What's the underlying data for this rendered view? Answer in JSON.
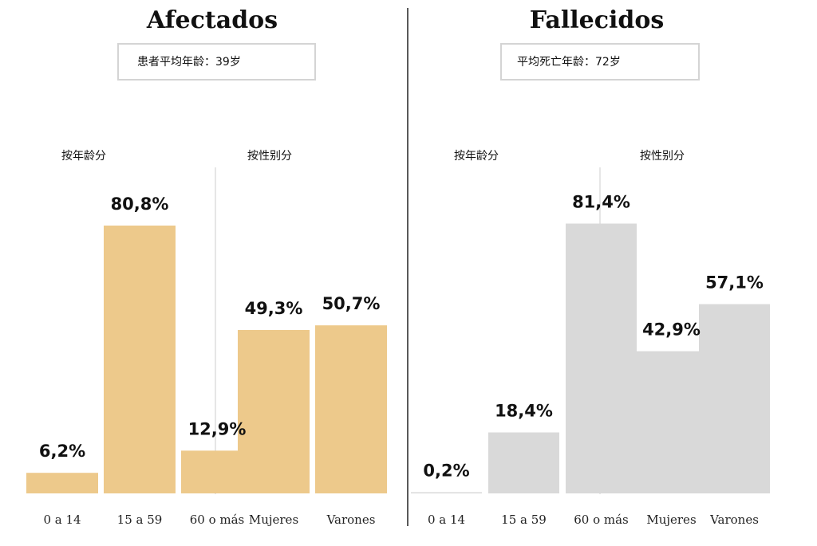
{
  "colors": {
    "affected": "#EDC98B",
    "deceased": "#D9D9D9",
    "divider": "#222222",
    "subdivider": "#CCCCCC",
    "box_border": "#D4D4D4"
  },
  "chart_data": [
    {
      "type": "bar",
      "title": "Afectados",
      "info": "患者平均年龄：39岁",
      "groups": [
        {
          "label": "按年龄分",
          "categories": [
            "0 a 14",
            "15 a 59",
            "60 o más"
          ],
          "values": [
            6.2,
            80.8,
            12.9
          ],
          "value_labels": [
            "6,2%",
            "80,8%",
            "12,9%"
          ]
        },
        {
          "label": "按性别分",
          "categories": [
            "Mujeres",
            "Varones"
          ],
          "values": [
            49.3,
            50.7
          ],
          "value_labels": [
            "49,3%",
            "50,7%"
          ]
        }
      ],
      "ylim": [
        0,
        100
      ]
    },
    {
      "type": "bar",
      "title": "Fallecidos",
      "info": "平均死亡年龄：72岁",
      "groups": [
        {
          "label": "按年龄分",
          "categories": [
            "0 a 14",
            "15 a 59",
            "60 o más"
          ],
          "values": [
            0.2,
            18.4,
            81.4
          ],
          "value_labels": [
            "0,2%",
            "18,4%",
            "81,4%"
          ]
        },
        {
          "label": "按性别分",
          "categories": [
            "Mujeres",
            "Varones"
          ],
          "values": [
            42.9,
            57.1
          ],
          "value_labels": [
            "42,9%",
            "57,1%"
          ]
        }
      ],
      "ylim": [
        0,
        100
      ]
    }
  ]
}
